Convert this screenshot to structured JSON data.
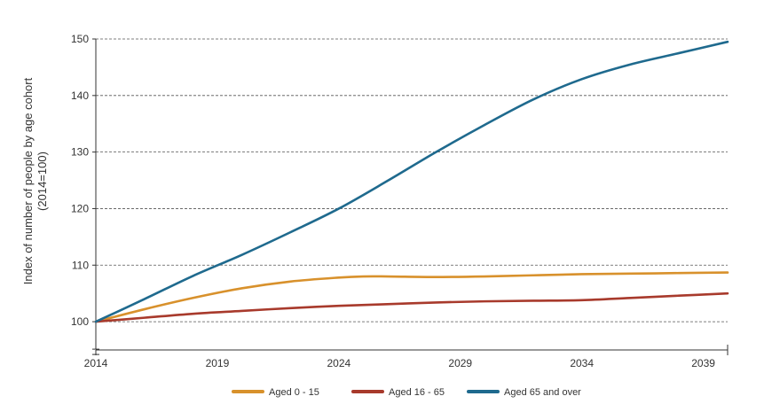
{
  "chart_data": {
    "type": "line",
    "ylabel_lines": [
      "Index of number of people by age cohort",
      "(2014=100)"
    ],
    "xlim": [
      2014,
      2040
    ],
    "ylim": [
      95,
      150
    ],
    "y_ticks": [
      100,
      110,
      120,
      130,
      140,
      150
    ],
    "x_ticks": [
      2014,
      2019,
      2024,
      2029,
      2034,
      2039
    ],
    "grid": "horizontal dashed",
    "legend_position": "bottom",
    "series": [
      {
        "name": "Aged 0 - 15",
        "color": "#D8912C",
        "x": [
          2014,
          2016,
          2018,
          2020,
          2022,
          2024,
          2025,
          2026,
          2028,
          2030,
          2032,
          2034,
          2036,
          2038,
          2040
        ],
        "values": [
          100,
          102.2,
          104.2,
          105.9,
          107.1,
          107.8,
          108.0,
          108.0,
          107.9,
          108.0,
          108.2,
          108.4,
          108.5,
          108.6,
          108.7
        ]
      },
      {
        "name": "Aged 16 - 65",
        "color": "#A83A2C",
        "x": [
          2014,
          2016,
          2018,
          2020,
          2022,
          2024,
          2026,
          2028,
          2030,
          2032,
          2034,
          2036,
          2038,
          2040
        ],
        "values": [
          100,
          100.7,
          101.4,
          101.9,
          102.4,
          102.8,
          103.1,
          103.4,
          103.6,
          103.7,
          103.8,
          104.2,
          104.6,
          105.0
        ]
      },
      {
        "name": "Aged 65 and over",
        "color": "#1F6A8E",
        "x": [
          2014,
          2016,
          2018,
          2020,
          2022,
          2024,
          2026,
          2028,
          2030,
          2032,
          2034,
          2036,
          2038,
          2040
        ],
        "values": [
          100,
          104.0,
          108.1,
          111.8,
          115.8,
          120.0,
          124.9,
          130.0,
          134.8,
          139.3,
          142.9,
          145.5,
          147.5,
          149.5
        ]
      }
    ]
  }
}
